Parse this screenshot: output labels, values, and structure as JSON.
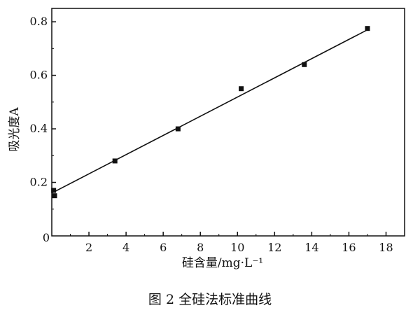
{
  "chart_data": {
    "type": "scatter",
    "xlabel": "硅含量/mg·L⁻¹",
    "ylabel": "吸光度A",
    "caption": "图 2  全硅法标准曲线",
    "xlim": [
      0,
      19
    ],
    "ylim": [
      0,
      0.85
    ],
    "xticks": [
      2,
      4,
      6,
      8,
      10,
      12,
      14,
      16,
      18
    ],
    "yticks": [
      0.2,
      0.4,
      0.6,
      0.8
    ],
    "origin_label": "0",
    "grid": false,
    "points": [
      {
        "x": 0.0,
        "y": 0.15
      },
      {
        "x": 0.1,
        "y": 0.17
      },
      {
        "x": 3.4,
        "y": 0.28
      },
      {
        "x": 6.8,
        "y": 0.4
      },
      {
        "x": 10.2,
        "y": 0.55
      },
      {
        "x": 13.6,
        "y": 0.64
      },
      {
        "x": 17.0,
        "y": 0.775
      }
    ],
    "fit_line": {
      "x": [
        0,
        17.0
      ],
      "y": [
        0.16,
        0.77
      ]
    },
    "colors": {
      "axis": "#111111",
      "marker": "#111111",
      "line": "#111111"
    }
  }
}
